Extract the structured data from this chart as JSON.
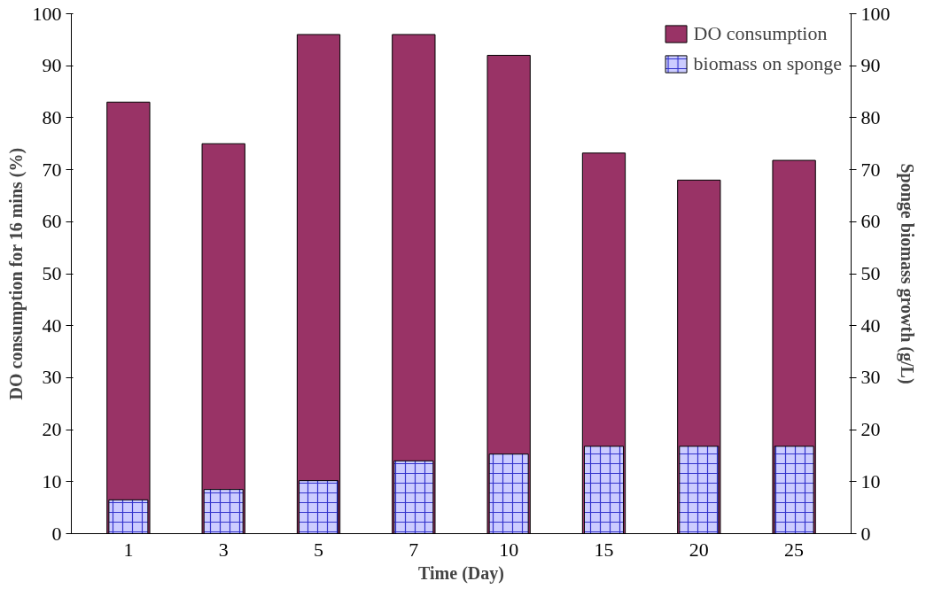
{
  "chart_data": {
    "type": "bar",
    "xlabel": "Time (Day)",
    "ylabel": "DO consumption for 16 mins (%)",
    "y2label": "Sponge biomass growth (g/L)",
    "categories": [
      "1",
      "3",
      "5",
      "7",
      "10",
      "15",
      "20",
      "25"
    ],
    "series": [
      {
        "name": "DO consumption",
        "color": "#993366",
        "values": [
          83,
          75,
          96,
          96,
          92,
          73.2,
          68,
          71.8
        ]
      },
      {
        "name": "biomass on sponge",
        "color": "#ccccff",
        "values": [
          6.5,
          8.5,
          10.2,
          14,
          15.3,
          16.8,
          16.8,
          16.8
        ]
      }
    ],
    "ylim": [
      0,
      100
    ],
    "yticks": [
      0,
      10,
      20,
      30,
      40,
      50,
      60,
      70,
      80,
      90,
      100
    ],
    "y2lim": [
      0,
      100
    ],
    "y2ticks": [
      0,
      10,
      20,
      30,
      40,
      50,
      60,
      70,
      80,
      90,
      100
    ],
    "grid": false,
    "legend": "top right"
  }
}
